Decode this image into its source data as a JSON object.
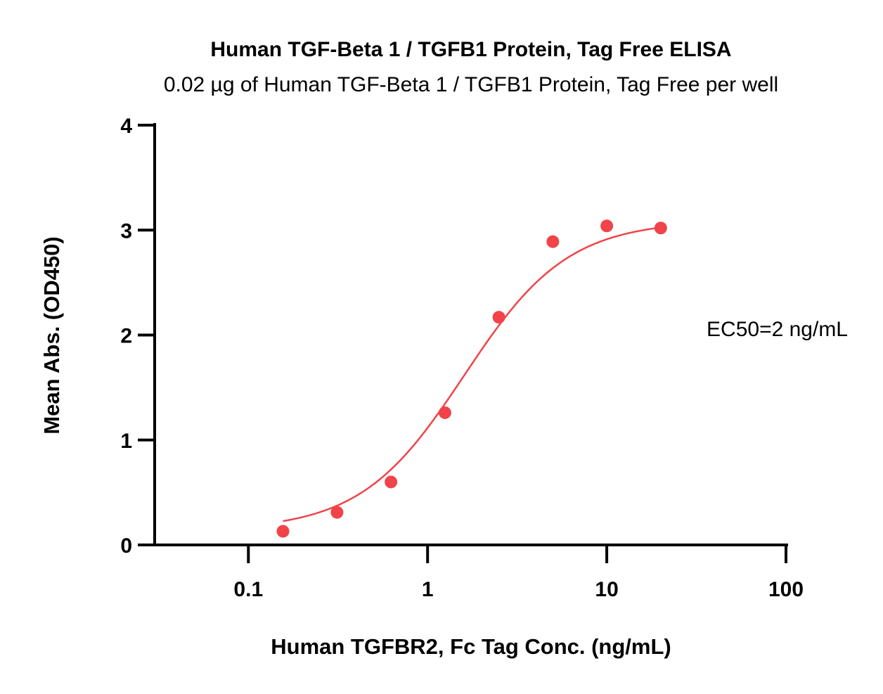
{
  "chart_data": {
    "type": "scatter",
    "title": "Human TGF-Beta 1 / TGFB1 Protein, Tag Free  ELISA",
    "subtitle": "0.02 µg of Human TGF-Beta 1 / TGFB1 Protein, Tag Free per well",
    "xlabel": "Human TGFBR2, Fc Tag Conc. (ng/mL)",
    "ylabel": "Mean Abs. (OD450)",
    "x_scale": "log",
    "xlim": [
      0.03,
      100
    ],
    "ylim": [
      0,
      4
    ],
    "x_ticks": [
      {
        "value": 0.1,
        "label": "0.1"
      },
      {
        "value": 1,
        "label": "1"
      },
      {
        "value": 10,
        "label": "10"
      },
      {
        "value": 100,
        "label": "100"
      }
    ],
    "y_ticks": [
      {
        "value": 0,
        "label": "0"
      },
      {
        "value": 1,
        "label": "1"
      },
      {
        "value": 2,
        "label": "2"
      },
      {
        "value": 3,
        "label": "3"
      },
      {
        "value": 4,
        "label": "4"
      }
    ],
    "grid": false,
    "legend": "none",
    "series": [
      {
        "color": "#f0444a",
        "x": [
          0.156,
          0.3125,
          0.625,
          1.25,
          2.5,
          5,
          10,
          20
        ],
        "y": [
          0.13,
          0.31,
          0.6,
          1.26,
          2.17,
          2.89,
          3.04,
          3.02
        ],
        "fit": {
          "model": "4PL",
          "bottom": 0.14,
          "top": 3.09,
          "ec50": 1.6,
          "hill": 1.5,
          "x_range": [
            0.156,
            20
          ]
        }
      }
    ],
    "annotations": [
      {
        "text": "EC50=2 ng/mL"
      }
    ]
  }
}
